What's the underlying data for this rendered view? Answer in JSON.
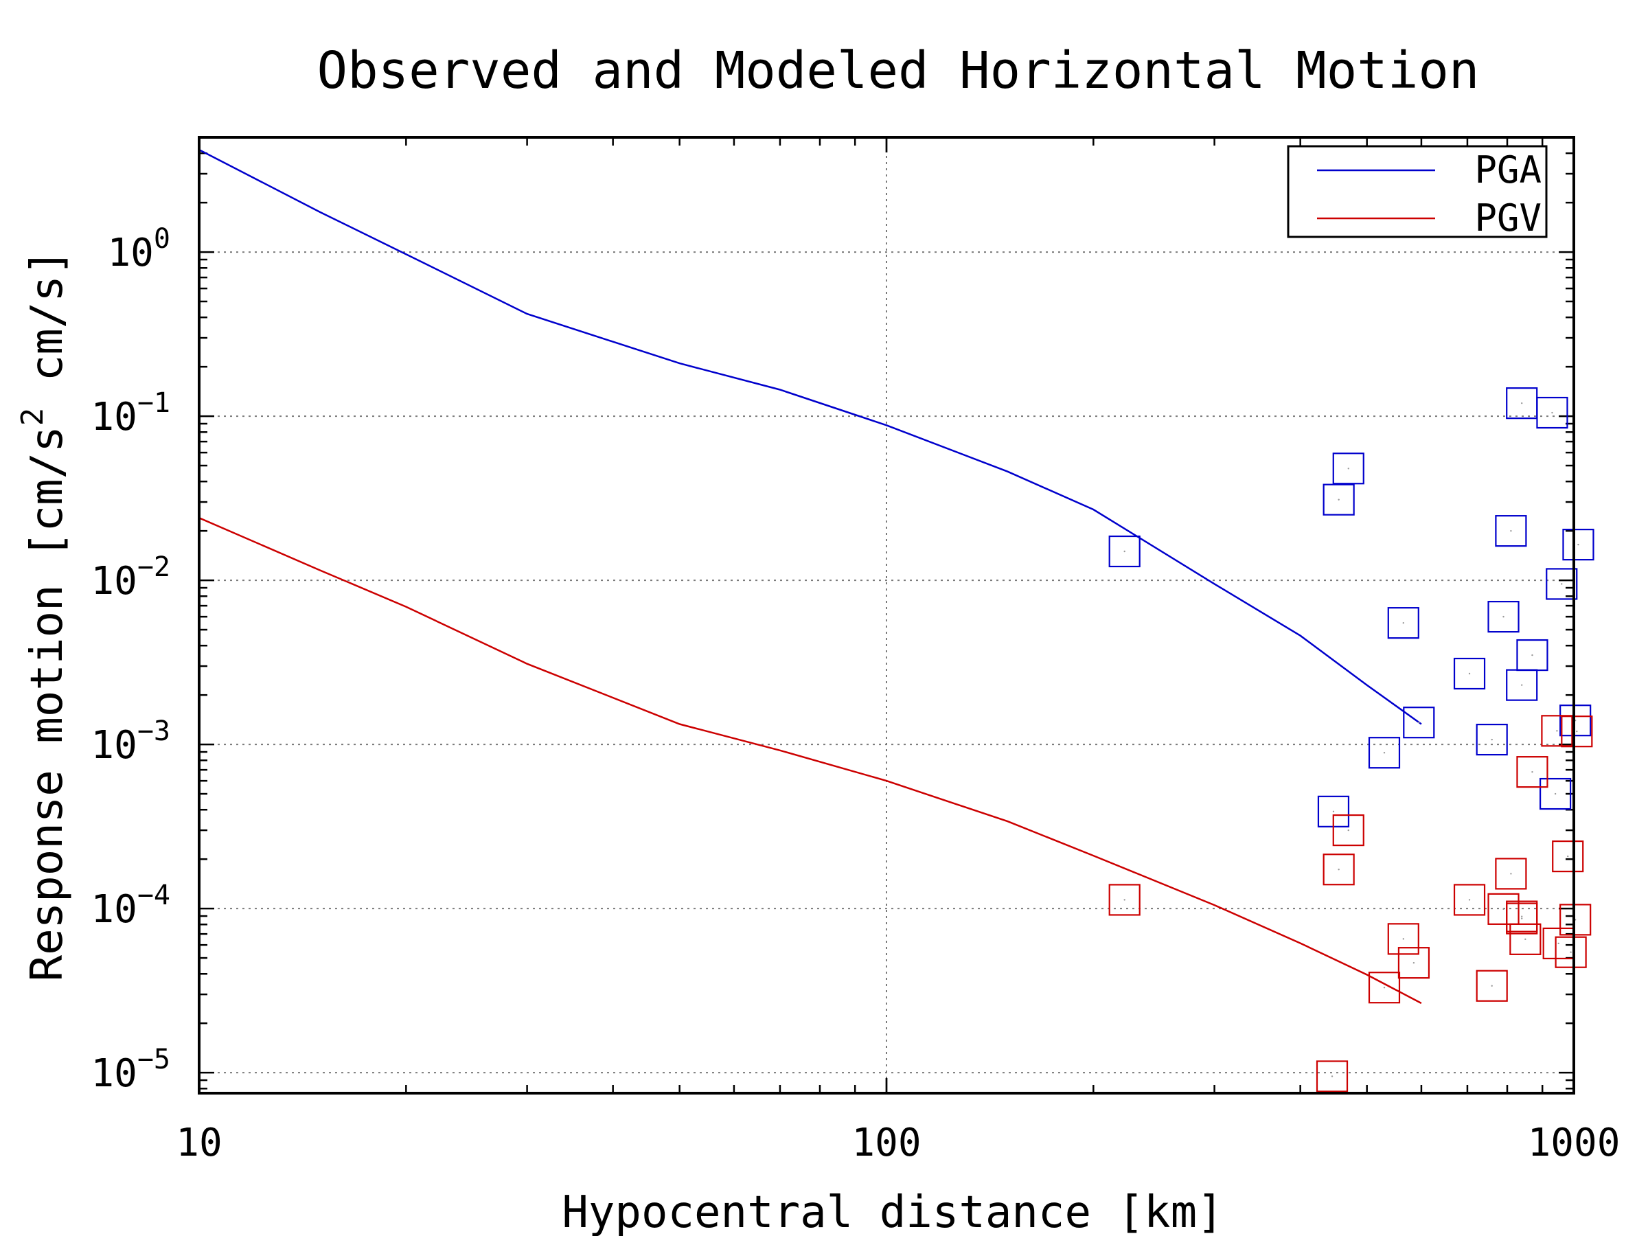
{
  "chart_data": {
    "type": "scatter",
    "title": "Observed and Modeled Horizontal Motion",
    "xlabel": "Hypocentral distance [km]",
    "ylabel": "Response motion [cm/s² cm/s]",
    "xscale": "log",
    "yscale": "log",
    "xlim": [
      10,
      1000
    ],
    "ylim": [
      7.5e-06,
      5
    ],
    "x_ticks": [
      10,
      100,
      1000
    ],
    "x_tick_labels": [
      "10",
      "100",
      "1000"
    ],
    "y_ticks": [
      1e-05,
      0.0001,
      0.001,
      0.01,
      0.1,
      1
    ],
    "y_tick_labels": [
      {
        "base": "10",
        "exp": "−5"
      },
      {
        "base": "10",
        "exp": "−4"
      },
      {
        "base": "10",
        "exp": "−3"
      },
      {
        "base": "10",
        "exp": "−2"
      },
      {
        "base": "10",
        "exp": "−1"
      },
      {
        "base": "10",
        "exp": "0"
      }
    ],
    "grid": true,
    "legend_position": "top-right",
    "series": [
      {
        "name": "PGA",
        "kind": "model-line",
        "color": "#0000cc",
        "x": [
          10,
          15,
          20,
          30,
          50,
          70,
          100,
          150,
          200,
          300,
          400,
          500,
          600
        ],
        "y": [
          4.2,
          1.75,
          0.97,
          0.42,
          0.21,
          0.145,
          0.088,
          0.046,
          0.027,
          0.0095,
          0.0046,
          0.0023,
          0.00133
        ]
      },
      {
        "name": "PGV",
        "kind": "model-line",
        "color": "#cc0000",
        "x": [
          10,
          15,
          20,
          30,
          50,
          70,
          100,
          150,
          200,
          300,
          400,
          500,
          600
        ],
        "y": [
          0.024,
          0.0115,
          0.0069,
          0.0031,
          0.00133,
          0.00092,
          0.0006,
          0.00034,
          0.00021,
          0.000105,
          6.15e-05,
          3.95e-05,
          2.65e-05
        ]
      },
      {
        "name": "",
        "kind": "observed",
        "color": "#0000cc",
        "x": [
          222,
          447,
          455,
          470,
          530,
          565,
          595,
          705,
          760,
          790,
          810,
          840,
          840,
          870,
          930,
          940,
          960,
          1005,
          1015
        ],
        "y": [
          0.015,
          0.00039,
          0.031,
          0.048,
          0.00089,
          0.0055,
          0.00136,
          0.0027,
          0.00107,
          0.006,
          0.02,
          0.12,
          0.0023,
          0.0035,
          0.105,
          0.0005,
          0.0095,
          0.0014,
          0.0165
        ]
      },
      {
        "name": "",
        "kind": "observed",
        "color": "#cc0000",
        "x": [
          222,
          445,
          455,
          470,
          530,
          565,
          585,
          705,
          760,
          790,
          810,
          840,
          840,
          850,
          870,
          945,
          950,
          980,
          990,
          1005,
          1010
        ],
        "y": [
          0.000113,
          9.5e-06,
          0.000173,
          0.0003,
          3.3e-05,
          6.53e-05,
          4.67e-05,
          0.000113,
          3.38e-05,
          9.93e-05,
          0.000163,
          8.7e-05,
          8.95e-05,
          6.5e-05,
          0.00068,
          0.00121,
          6.13e-05,
          0.000208,
          5.42e-05,
          8.55e-05,
          0.0012
        ]
      }
    ]
  }
}
